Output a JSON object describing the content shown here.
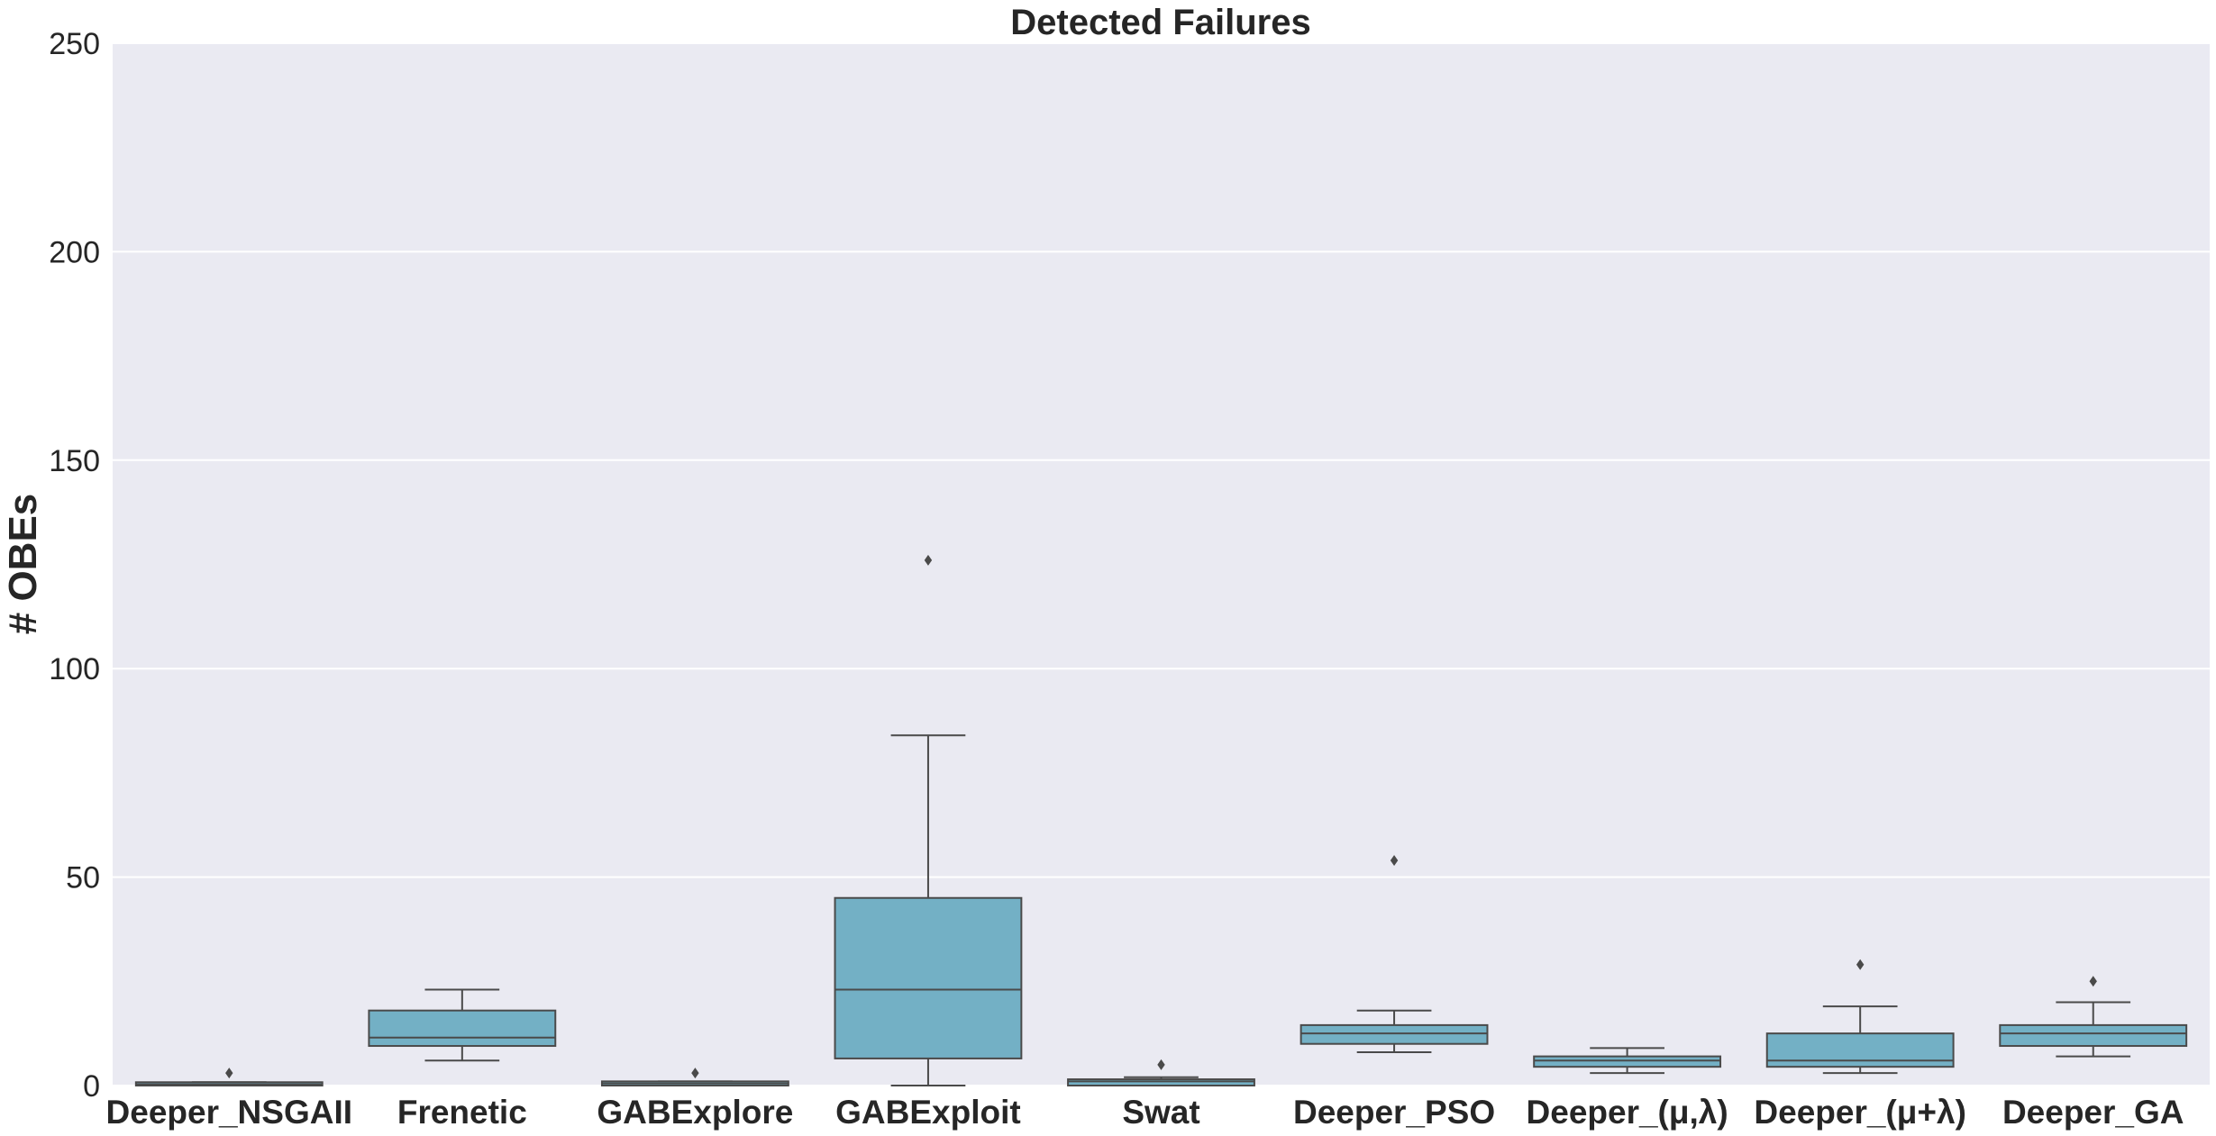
{
  "chart_data": {
    "type": "box",
    "title": "Detected Failures",
    "xlabel": "",
    "ylabel": "# OBEs",
    "ylim": [
      0,
      250
    ],
    "yticks": [
      0,
      50,
      100,
      150,
      200,
      250
    ],
    "grid": true,
    "legend": "none",
    "colors": {
      "background": "#eaeaf2",
      "grid": "#ffffff",
      "box_fill": "#73b0c5",
      "box_edge": "#4a4a4a",
      "text": "#262626"
    },
    "categories": [
      "Deeper_NSGAII",
      "Frenetic",
      "GABExplore",
      "GABExploit",
      "Swat",
      "Deeper_PSO",
      "Deeper_(μ,λ)",
      "Deeper_(μ+λ)",
      "Deeper_GA"
    ],
    "boxes": [
      {
        "whisker_low": 0,
        "q1": 0,
        "median": 0.3,
        "q3": 0.8,
        "whisker_high": 0.8,
        "outliers": [
          3
        ]
      },
      {
        "whisker_low": 6,
        "q1": 9.5,
        "median": 11.5,
        "q3": 18,
        "whisker_high": 23,
        "outliers": []
      },
      {
        "whisker_low": 0,
        "q1": 0,
        "median": 0.5,
        "q3": 1,
        "whisker_high": 1,
        "outliers": [
          3
        ]
      },
      {
        "whisker_low": 0,
        "q1": 6.5,
        "median": 23,
        "q3": 45,
        "whisker_high": 84,
        "outliers": [
          126
        ]
      },
      {
        "whisker_low": 0,
        "q1": 0,
        "median": 1,
        "q3": 1.5,
        "whisker_high": 2,
        "outliers": [
          5
        ]
      },
      {
        "whisker_low": 8,
        "q1": 10,
        "median": 12.5,
        "q3": 14.5,
        "whisker_high": 18,
        "outliers": [
          54
        ]
      },
      {
        "whisker_low": 3,
        "q1": 4.5,
        "median": 6,
        "q3": 7,
        "whisker_high": 9,
        "outliers": []
      },
      {
        "whisker_low": 3,
        "q1": 4.5,
        "median": 6,
        "q3": 12.5,
        "whisker_high": 19,
        "outliers": [
          29
        ]
      },
      {
        "whisker_low": 7,
        "q1": 9.5,
        "median": 12.5,
        "q3": 14.5,
        "whisker_high": 20,
        "outliers": [
          25
        ]
      }
    ]
  }
}
